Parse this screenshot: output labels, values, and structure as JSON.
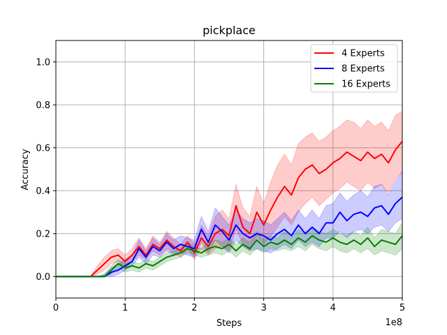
{
  "chart_data": {
    "type": "line",
    "title": "pickplace",
    "xlabel": "Steps",
    "ylabel": "Accuracy",
    "x_multiplier": "1e8",
    "xlim": [
      0,
      5
    ],
    "ylim": [
      -0.1,
      1.1
    ],
    "xticks": [
      0,
      1,
      2,
      3,
      4,
      5
    ],
    "xtick_labels": [
      "0",
      "1",
      "2",
      "3",
      "4",
      "5"
    ],
    "yticks": [
      0.0,
      0.2,
      0.4,
      0.6,
      0.8,
      1.0
    ],
    "ytick_labels": [
      "0.0",
      "0.2",
      "0.4",
      "0.6",
      "0.8",
      "1.0"
    ],
    "grid": true,
    "legend_position": "top-right",
    "x": [
      0,
      0.5,
      0.6,
      0.7,
      0.8,
      0.9,
      1.0,
      1.1,
      1.2,
      1.3,
      1.4,
      1.5,
      1.6,
      1.7,
      1.8,
      1.9,
      2.0,
      2.1,
      2.2,
      2.3,
      2.4,
      2.5,
      2.6,
      2.7,
      2.8,
      2.9,
      3.0,
      3.1,
      3.2,
      3.3,
      3.4,
      3.5,
      3.6,
      3.7,
      3.8,
      3.9,
      4.0,
      4.1,
      4.2,
      4.3,
      4.4,
      4.5,
      4.6,
      4.7,
      4.8,
      4.9,
      5.0
    ],
    "series": [
      {
        "name": "4 Experts",
        "color": "#ff0000",
        "values": [
          0,
          0,
          0.03,
          0.06,
          0.09,
          0.1,
          0.07,
          0.1,
          0.14,
          0.1,
          0.15,
          0.13,
          0.17,
          0.14,
          0.12,
          0.16,
          0.11,
          0.18,
          0.14,
          0.2,
          0.22,
          0.19,
          0.33,
          0.23,
          0.2,
          0.3,
          0.24,
          0.31,
          0.37,
          0.42,
          0.38,
          0.46,
          0.5,
          0.52,
          0.48,
          0.5,
          0.53,
          0.55,
          0.58,
          0.56,
          0.54,
          0.58,
          0.55,
          0.57,
          0.53,
          0.59,
          0.63
        ],
        "lower": [
          0,
          0,
          0.01,
          0.03,
          0.06,
          0.07,
          0.04,
          0.07,
          0.1,
          0.08,
          0.12,
          0.1,
          0.13,
          0.11,
          0.09,
          0.13,
          0.08,
          0.13,
          0.1,
          0.13,
          0.14,
          0.12,
          0.22,
          0.15,
          0.12,
          0.19,
          0.15,
          0.19,
          0.23,
          0.28,
          0.24,
          0.3,
          0.34,
          0.37,
          0.33,
          0.36,
          0.39,
          0.41,
          0.44,
          0.42,
          0.4,
          0.44,
          0.41,
          0.43,
          0.39,
          0.45,
          0.49
        ],
        "upper": [
          0,
          0,
          0.05,
          0.09,
          0.12,
          0.13,
          0.1,
          0.13,
          0.18,
          0.13,
          0.19,
          0.16,
          0.21,
          0.18,
          0.15,
          0.19,
          0.15,
          0.24,
          0.19,
          0.28,
          0.31,
          0.27,
          0.43,
          0.32,
          0.28,
          0.42,
          0.34,
          0.44,
          0.52,
          0.57,
          0.52,
          0.62,
          0.65,
          0.67,
          0.63,
          0.65,
          0.68,
          0.7,
          0.73,
          0.72,
          0.69,
          0.73,
          0.7,
          0.72,
          0.68,
          0.75,
          0.77
        ]
      },
      {
        "name": "8 Experts",
        "color": "#0000ff",
        "values": [
          0,
          0,
          0,
          0,
          0.02,
          0.03,
          0.05,
          0.07,
          0.13,
          0.09,
          0.14,
          0.12,
          0.16,
          0.13,
          0.15,
          0.14,
          0.13,
          0.22,
          0.16,
          0.24,
          0.21,
          0.17,
          0.24,
          0.2,
          0.18,
          0.2,
          0.19,
          0.17,
          0.2,
          0.22,
          0.19,
          0.24,
          0.2,
          0.23,
          0.2,
          0.25,
          0.25,
          0.3,
          0.26,
          0.29,
          0.3,
          0.28,
          0.32,
          0.33,
          0.29,
          0.34,
          0.37
        ],
        "lower": [
          0,
          0,
          0,
          0,
          0,
          0.01,
          0.03,
          0.05,
          0.09,
          0.06,
          0.1,
          0.09,
          0.12,
          0.1,
          0.11,
          0.1,
          0.09,
          0.16,
          0.11,
          0.17,
          0.14,
          0.11,
          0.17,
          0.14,
          0.12,
          0.13,
          0.12,
          0.11,
          0.13,
          0.15,
          0.13,
          0.17,
          0.14,
          0.16,
          0.14,
          0.18,
          0.18,
          0.21,
          0.18,
          0.21,
          0.22,
          0.2,
          0.23,
          0.24,
          0.21,
          0.25,
          0.27
        ],
        "upper": [
          0,
          0,
          0,
          0.01,
          0.04,
          0.06,
          0.08,
          0.1,
          0.17,
          0.12,
          0.18,
          0.15,
          0.2,
          0.17,
          0.19,
          0.18,
          0.17,
          0.28,
          0.21,
          0.32,
          0.28,
          0.24,
          0.31,
          0.27,
          0.25,
          0.27,
          0.26,
          0.24,
          0.27,
          0.3,
          0.26,
          0.31,
          0.27,
          0.31,
          0.27,
          0.33,
          0.34,
          0.39,
          0.35,
          0.38,
          0.4,
          0.37,
          0.42,
          0.43,
          0.38,
          0.44,
          0.49
        ]
      },
      {
        "name": "16 Experts",
        "color": "#008000",
        "values": [
          0,
          0,
          0,
          0,
          0.03,
          0.06,
          0.04,
          0.05,
          0.04,
          0.06,
          0.05,
          0.07,
          0.09,
          0.1,
          0.11,
          0.13,
          0.12,
          0.11,
          0.13,
          0.14,
          0.13,
          0.15,
          0.12,
          0.15,
          0.13,
          0.17,
          0.14,
          0.16,
          0.15,
          0.17,
          0.15,
          0.18,
          0.16,
          0.19,
          0.17,
          0.16,
          0.18,
          0.16,
          0.15,
          0.17,
          0.15,
          0.18,
          0.14,
          0.17,
          0.16,
          0.15,
          0.19
        ],
        "lower": [
          0,
          0,
          0,
          0,
          0.01,
          0.04,
          0.02,
          0.03,
          0.02,
          0.04,
          0.03,
          0.05,
          0.07,
          0.08,
          0.09,
          0.11,
          0.1,
          0.09,
          0.1,
          0.11,
          0.1,
          0.12,
          0.09,
          0.12,
          0.1,
          0.13,
          0.11,
          0.13,
          0.12,
          0.13,
          0.12,
          0.14,
          0.12,
          0.15,
          0.13,
          0.12,
          0.14,
          0.12,
          0.11,
          0.13,
          0.11,
          0.13,
          0.1,
          0.12,
          0.11,
          0.1,
          0.13
        ],
        "upper": [
          0,
          0,
          0,
          0.01,
          0.05,
          0.08,
          0.06,
          0.07,
          0.06,
          0.08,
          0.07,
          0.09,
          0.11,
          0.12,
          0.13,
          0.16,
          0.14,
          0.13,
          0.16,
          0.17,
          0.16,
          0.18,
          0.15,
          0.18,
          0.16,
          0.21,
          0.17,
          0.19,
          0.18,
          0.21,
          0.18,
          0.22,
          0.2,
          0.23,
          0.21,
          0.2,
          0.22,
          0.2,
          0.19,
          0.21,
          0.19,
          0.23,
          0.18,
          0.22,
          0.21,
          0.2,
          0.25
        ]
      }
    ]
  }
}
